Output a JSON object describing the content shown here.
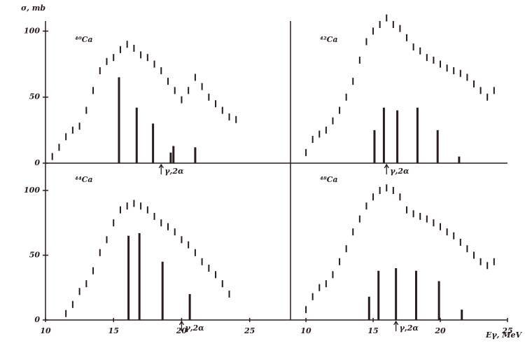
{
  "chart_data": [
    {
      "type": "scatter",
      "label": "⁴⁰Ca",
      "ylabel": "σ, mb",
      "xlim": [
        10,
        28
      ],
      "ylim": [
        0,
        105
      ],
      "yticks": [
        0,
        50,
        100
      ],
      "x": [
        10.5,
        11,
        11.5,
        12,
        12.5,
        13,
        13.5,
        14,
        14.5,
        15,
        15.5,
        16,
        16.5,
        17,
        17.5,
        18,
        18.5,
        19,
        19.5,
        20,
        20.5,
        21,
        21.5,
        22,
        22.5,
        23,
        23.5,
        24
      ],
      "values": [
        5,
        12,
        20,
        25,
        28,
        40,
        55,
        70,
        77,
        80,
        86,
        90,
        87,
        82,
        80,
        75,
        70,
        62,
        55,
        48,
        55,
        65,
        58,
        50,
        45,
        40,
        35,
        33
      ],
      "lines": {
        "x": [
          15.4,
          16.7,
          17.9,
          19.2,
          19.4,
          21
        ],
        "values": [
          65,
          42,
          30,
          8,
          13,
          12
        ]
      },
      "annotation": {
        "text": "γ,2α",
        "x": 18.5
      }
    },
    {
      "type": "scatter",
      "label": "⁴²Ca",
      "xlim": [
        8.85,
        25
      ],
      "ylim": [
        0,
        105
      ],
      "x": [
        10,
        10.5,
        11,
        11.5,
        12,
        12.5,
        13,
        13.5,
        14,
        14.5,
        15,
        15.5,
        16,
        16.5,
        17,
        17.5,
        18,
        18.5,
        19,
        19.5,
        20,
        20.5,
        21,
        21.5,
        22,
        22.5,
        23,
        23.5,
        24
      ],
      "values": [
        8,
        18,
        22,
        25,
        32,
        40,
        50,
        62,
        78,
        92,
        100,
        105,
        110,
        105,
        102,
        95,
        88,
        85,
        80,
        78,
        75,
        72,
        70,
        68,
        65,
        60,
        55,
        50,
        55
      ],
      "lines": {
        "x": [
          15.1,
          15.8,
          16.8,
          18.3,
          19.8,
          21.4
        ],
        "values": [
          25,
          42,
          40,
          42,
          25,
          5
        ]
      },
      "annotation": {
        "text": "γ,2α",
        "x": 16
      }
    },
    {
      "type": "scatter",
      "label": "⁴⁴Ca",
      "xlim": [
        10,
        28
      ],
      "ylim": [
        0,
        120
      ],
      "yticks": [
        0,
        50,
        100
      ],
      "xticks": [
        10,
        15,
        20,
        25
      ],
      "x": [
        11.5,
        12,
        12.5,
        13,
        13.5,
        14,
        14.5,
        15,
        15.5,
        16,
        16.5,
        17,
        17.5,
        18,
        18.5,
        19,
        19.5,
        20,
        20.5,
        21,
        21.5,
        22,
        22.5,
        23,
        23.5
      ],
      "values": [
        5,
        12,
        22,
        28,
        38,
        52,
        62,
        75,
        85,
        88,
        90,
        88,
        85,
        80,
        75,
        72,
        68,
        62,
        58,
        52,
        45,
        40,
        35,
        28,
        20
      ],
      "lines": {
        "x": [
          16.1,
          16.9,
          18.6,
          20.6
        ],
        "values": [
          65,
          67,
          45,
          20
        ]
      },
      "annotation": {
        "text": "γ,2α",
        "x": 20
      }
    },
    {
      "type": "scatter",
      "label": "⁴⁸Ca",
      "xlabel": "Eγ, MeV",
      "xlim": [
        8.85,
        25
      ],
      "ylim": [
        0,
        120
      ],
      "xticks": [
        10,
        15,
        20,
        25
      ],
      "x": [
        10,
        10.5,
        11,
        11.5,
        12,
        12.5,
        13,
        13.5,
        14,
        14.5,
        15,
        15.5,
        16,
        16.5,
        17,
        17.5,
        18,
        18.5,
        19,
        19.5,
        20,
        20.5,
        21,
        21.5,
        22,
        22.5,
        23,
        23.5,
        24
      ],
      "values": [
        8,
        18,
        25,
        28,
        35,
        45,
        55,
        68,
        78,
        88,
        95,
        100,
        102,
        100,
        95,
        85,
        82,
        80,
        78,
        75,
        72,
        68,
        65,
        60,
        55,
        50,
        45,
        42,
        45
      ],
      "lines": {
        "x": [
          14.7,
          15.4,
          16.7,
          18.2,
          19.9,
          21.6
        ],
        "values": [
          18,
          38,
          40,
          38,
          30,
          8
        ]
      },
      "annotation": {
        "text": "γ,2α",
        "x": 16.7
      }
    }
  ]
}
